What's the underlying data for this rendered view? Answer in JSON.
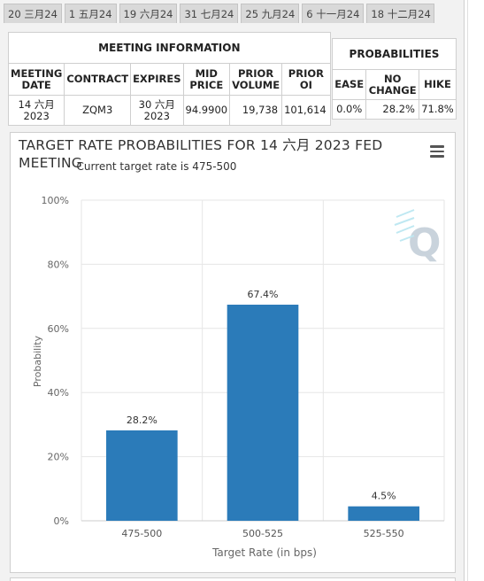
{
  "tabs": [
    "20 三月24",
    "1 五月24",
    "19 六月24",
    "31 七月24",
    "25 九月24",
    "6 十一月24",
    "18 十二月24"
  ],
  "meeting_info": {
    "title": "MEETING INFORMATION",
    "headers": {
      "meeting_date_1": "MEETING",
      "meeting_date_2": "DATE",
      "contract": "CONTRACT",
      "expires": "EXPIRES",
      "mid_price_1": "MID",
      "mid_price_2": "PRICE",
      "prior_volume_1": "PRIOR",
      "prior_volume_2": "VOLUME",
      "prior_oi_1": "PRIOR",
      "prior_oi_2": "OI"
    },
    "row": {
      "meeting_date_1": "14 六月",
      "meeting_date_2": "2023",
      "contract": "ZQM3",
      "expires_1": "30 六月",
      "expires_2": "2023",
      "mid_price": "94.9900",
      "prior_volume": "19,738",
      "prior_oi": "101,614"
    }
  },
  "probabilities": {
    "title": "PROBABILITIES",
    "headers": {
      "ease": "EASE",
      "no_change_1": "NO",
      "no_change_2": "CHANGE",
      "hike": "HIKE"
    },
    "row": {
      "ease": "0.0%",
      "no_change": "28.2%",
      "hike": "71.8%"
    }
  },
  "chart_data": {
    "type": "bar",
    "title": "TARGET RATE PROBABILITIES FOR 14 六月 2023 FED MEETING",
    "subtitle": "Current target rate is 475-500",
    "categories": [
      "475-500",
      "500-525",
      "525-550"
    ],
    "values": [
      28.2,
      67.4,
      4.5
    ],
    "data_labels": [
      "28.2%",
      "67.4%",
      "4.5%"
    ],
    "xlabel": "Target Rate (in bps)",
    "ylabel": "Probability",
    "ylim": [
      0,
      100
    ],
    "yticks": [
      "0%",
      "20%",
      "40%",
      "60%",
      "80%",
      "100%"
    ],
    "bar_color": "#2b7bb9",
    "grid": true
  },
  "watermark": "Q",
  "menu_icon": "hamburger-menu-icon"
}
